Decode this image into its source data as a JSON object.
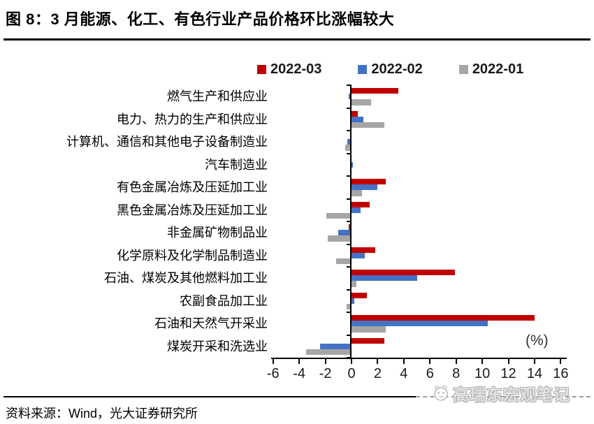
{
  "title": "图 8：3 月能源、化工、有色行业产品价格环比涨幅较大",
  "source": "资料来源：Wind，光大证券研究所",
  "watermark": "高瑞东宏观笔记",
  "unit_label": "(%)",
  "colors": {
    "series_2022_03": "#C00000",
    "series_2022_02": "#4472C4",
    "series_2022_01": "#A6A6A6",
    "axis": "#000000"
  },
  "chart_data": {
    "type": "bar",
    "orientation": "horizontal",
    "title": "图 8：3 月能源、化工、有色行业产品价格环比涨幅较大",
    "xlabel": "(%)",
    "xlim": [
      -6,
      16
    ],
    "x_ticks": [
      -6,
      -4,
      -2,
      0,
      2,
      4,
      6,
      8,
      10,
      12,
      14,
      16
    ],
    "grid": false,
    "legend_position": "top",
    "categories": [
      "燃气生产和供应业",
      "电力、热力的生产和供应业",
      "计算机、通信和其他电子设备制造业",
      "汽车制造业",
      "有色金属冶炼及压延加工业",
      "黑色金属冶炼及压延加工业",
      "非金属矿物制品业",
      "化学原料及化学制品制造业",
      "石油、煤炭及其他燃料加工业",
      "农副食品加工业",
      "石油和天然气开采业",
      "煤炭开采和洗选业"
    ],
    "series": [
      {
        "name": "2022-03",
        "color": "#C00000",
        "values": [
          3.6,
          0.5,
          -0.1,
          0.0,
          2.6,
          1.4,
          -0.2,
          1.8,
          7.9,
          1.2,
          14.0,
          2.5
        ]
      },
      {
        "name": "2022-02",
        "color": "#4472C4",
        "values": [
          -0.2,
          0.9,
          -0.3,
          0.1,
          2.0,
          0.7,
          -1.0,
          1.0,
          5.0,
          0.2,
          10.4,
          -2.4
        ]
      },
      {
        "name": "2022-01",
        "color": "#A6A6A6",
        "values": [
          1.5,
          2.5,
          -0.5,
          0.0,
          0.8,
          -1.9,
          -1.8,
          -1.2,
          0.4,
          -0.4,
          2.6,
          -3.5
        ]
      }
    ]
  }
}
